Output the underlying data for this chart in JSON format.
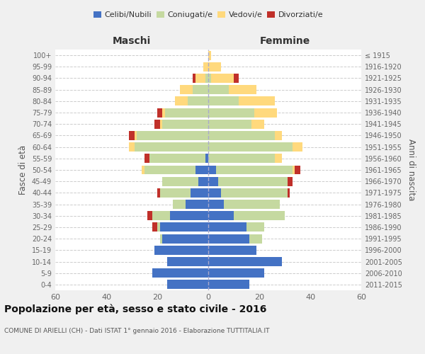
{
  "age_groups": [
    "0-4",
    "5-9",
    "10-14",
    "15-19",
    "20-24",
    "25-29",
    "30-34",
    "35-39",
    "40-44",
    "45-49",
    "50-54",
    "55-59",
    "60-64",
    "65-69",
    "70-74",
    "75-79",
    "80-84",
    "85-89",
    "90-94",
    "95-99",
    "100+"
  ],
  "birth_years": [
    "2011-2015",
    "2006-2010",
    "2001-2005",
    "1996-2000",
    "1991-1995",
    "1986-1990",
    "1981-1985",
    "1976-1980",
    "1971-1975",
    "1966-1970",
    "1961-1965",
    "1956-1960",
    "1951-1955",
    "1946-1950",
    "1941-1945",
    "1936-1940",
    "1931-1935",
    "1926-1930",
    "1921-1925",
    "1916-1920",
    "≤ 1915"
  ],
  "male": {
    "celibi": [
      16,
      22,
      16,
      21,
      18,
      19,
      15,
      9,
      7,
      4,
      5,
      1,
      0,
      0,
      0,
      0,
      0,
      0,
      0,
      0,
      0
    ],
    "coniugati": [
      0,
      0,
      0,
      0,
      1,
      1,
      7,
      5,
      12,
      14,
      20,
      22,
      29,
      28,
      18,
      17,
      8,
      6,
      1,
      0,
      0
    ],
    "vedovi": [
      0,
      0,
      0,
      0,
      0,
      0,
      0,
      0,
      0,
      0,
      1,
      0,
      2,
      1,
      1,
      1,
      5,
      5,
      4,
      2,
      0
    ],
    "divorziati": [
      0,
      0,
      0,
      0,
      0,
      2,
      2,
      0,
      1,
      0,
      0,
      2,
      0,
      2,
      2,
      2,
      0,
      0,
      1,
      0,
      0
    ]
  },
  "female": {
    "nubili": [
      16,
      22,
      29,
      19,
      16,
      15,
      10,
      6,
      5,
      4,
      3,
      0,
      0,
      0,
      0,
      0,
      0,
      0,
      0,
      0,
      0
    ],
    "coniugate": [
      0,
      0,
      0,
      0,
      5,
      7,
      20,
      22,
      26,
      27,
      30,
      26,
      33,
      26,
      17,
      18,
      12,
      8,
      1,
      0,
      0
    ],
    "vedove": [
      0,
      0,
      0,
      0,
      0,
      0,
      0,
      0,
      0,
      0,
      1,
      3,
      4,
      3,
      5,
      9,
      14,
      11,
      9,
      5,
      1
    ],
    "divorziate": [
      0,
      0,
      0,
      0,
      0,
      0,
      0,
      0,
      1,
      2,
      2,
      0,
      0,
      0,
      0,
      0,
      0,
      0,
      2,
      0,
      0
    ]
  },
  "colors": {
    "celibi": "#4472c4",
    "coniugati": "#c5d9a0",
    "vedovi": "#ffd97d",
    "divorziati": "#c0302a"
  },
  "title": "Popolazione per età, sesso e stato civile - 2016",
  "subtitle": "COMUNE DI ARIELLI (CH) - Dati ISTAT 1° gennaio 2016 - Elaborazione TUTTITALIA.IT",
  "xlabel_left": "Maschi",
  "xlabel_right": "Femmine",
  "ylabel_left": "Fasce di età",
  "ylabel_right": "Anni di nascita",
  "legend_labels": [
    "Celibi/Nubili",
    "Coniugati/e",
    "Vedovi/e",
    "Divorziati/e"
  ],
  "xlim": 60,
  "bg_color": "#f0f0f0",
  "plot_bg": "#ffffff"
}
